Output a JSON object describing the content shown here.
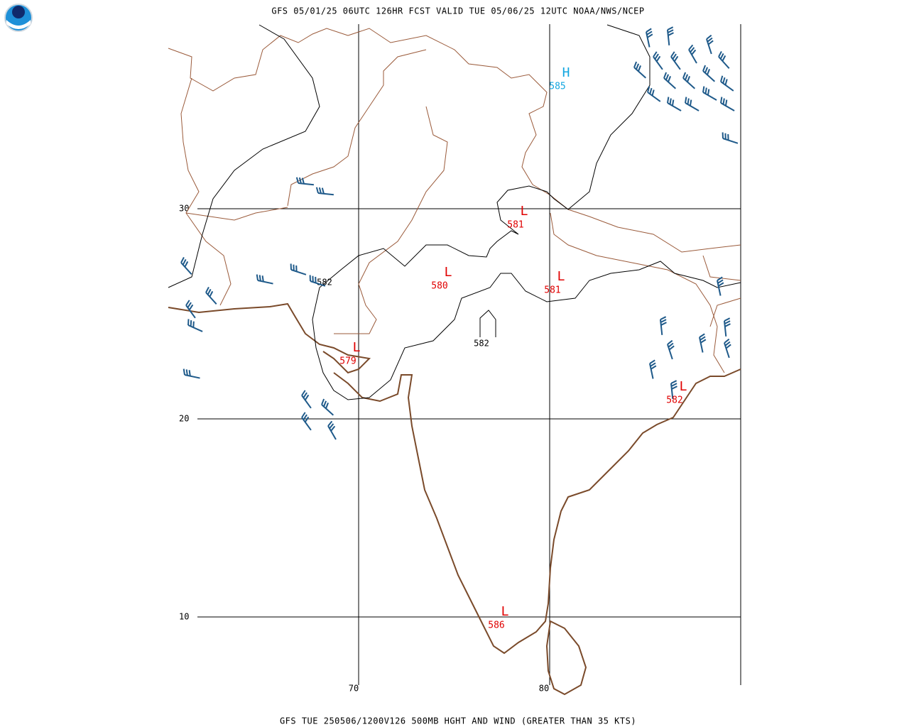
{
  "header": {
    "title": "GFS 05/01/25 06UTC 126HR FCST VALID TUE 05/06/25 12UTC NOAA/NWS/NCEP"
  },
  "footer": {
    "caption": "GFS TUE 250506/1200V126 500MB HGHT AND WIND (GREATER THAN 35 KTS)"
  },
  "map": {
    "lat_labels": [
      30,
      20,
      10
    ],
    "lon_labels": [
      70,
      80
    ],
    "contour_labels": [
      582,
      582
    ],
    "centers": [
      {
        "symbol": "H",
        "value": 585
      },
      {
        "symbol": "L",
        "value": 581
      },
      {
        "symbol": "L",
        "value": 580
      },
      {
        "symbol": "L",
        "value": 581
      },
      {
        "symbol": "L",
        "value": 579
      },
      {
        "symbol": "L",
        "value": 582
      },
      {
        "symbol": "L",
        "value": 586
      }
    ]
  }
}
